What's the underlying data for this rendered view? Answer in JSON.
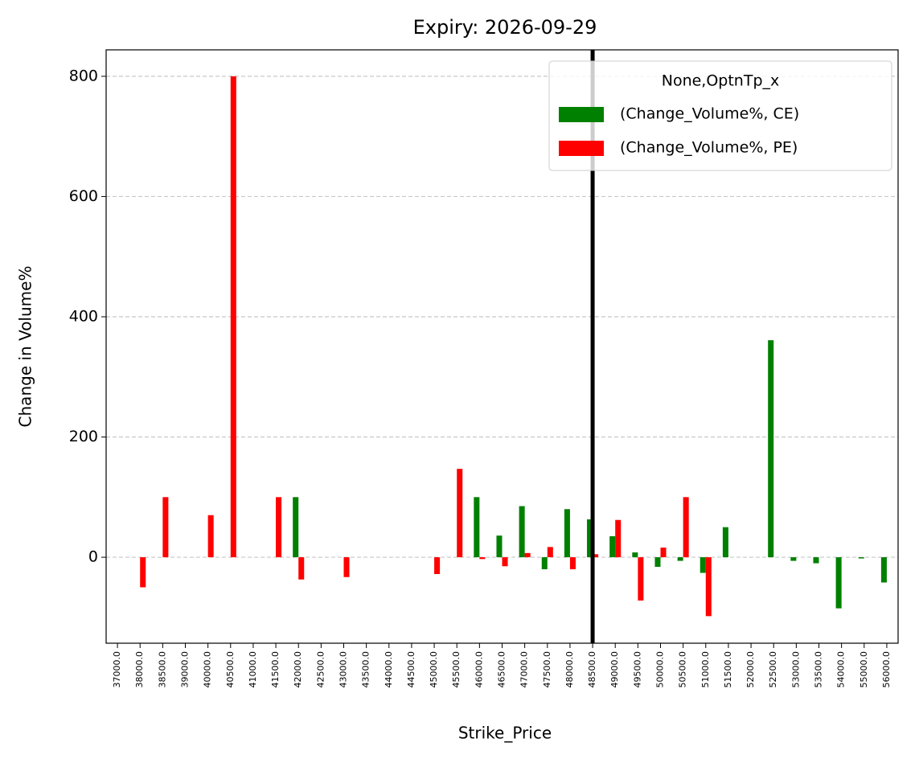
{
  "chart_data": {
    "type": "bar",
    "title": "Expiry: 2026-09-29",
    "x_label": "Strike_Price",
    "y_label": "Change in Volume%",
    "legend_title": "None,OptnTp_x",
    "legend_position": "upper right",
    "grid": true,
    "categories": [
      "37000.0",
      "38000.0",
      "38500.0",
      "39000.0",
      "40000.0",
      "40500.0",
      "41000.0",
      "41500.0",
      "42000.0",
      "42500.0",
      "43000.0",
      "43500.0",
      "44000.0",
      "44500.0",
      "45000.0",
      "45500.0",
      "46000.0",
      "46500.0",
      "47000.0",
      "47500.0",
      "48000.0",
      "48500.0",
      "49000.0",
      "49500.0",
      "50000.0",
      "50500.0",
      "51000.0",
      "51500.0",
      "52000.0",
      "52500.0",
      "53000.0",
      "53500.0",
      "54000.0",
      "55000.0",
      "56000.0"
    ],
    "series": [
      {
        "name": "(Change_Volume%, CE)",
        "color": "#008000",
        "values": [
          null,
          null,
          null,
          null,
          null,
          null,
          null,
          null,
          100,
          null,
          null,
          null,
          null,
          null,
          null,
          null,
          100,
          36,
          85,
          -20,
          80,
          63,
          35,
          8,
          -16,
          -6,
          -26,
          50,
          null,
          361,
          -6,
          -10,
          -85,
          -2,
          -42
        ]
      },
      {
        "name": "(Change_Volume%, PE)",
        "color": "#ff0000",
        "values": [
          null,
          -50,
          100,
          null,
          70,
          800,
          null,
          100,
          -37,
          null,
          -33,
          null,
          null,
          null,
          -28,
          147,
          -3,
          -15,
          7,
          17,
          -20,
          5,
          62,
          -72,
          16,
          100,
          -98,
          null,
          null,
          null,
          null,
          null,
          null,
          null,
          null
        ]
      }
    ],
    "vline_at": 21,
    "vline_color": "#000000",
    "ylim": [
      -143,
      844
    ],
    "yticks": [
      0,
      200,
      400,
      600,
      800
    ]
  }
}
